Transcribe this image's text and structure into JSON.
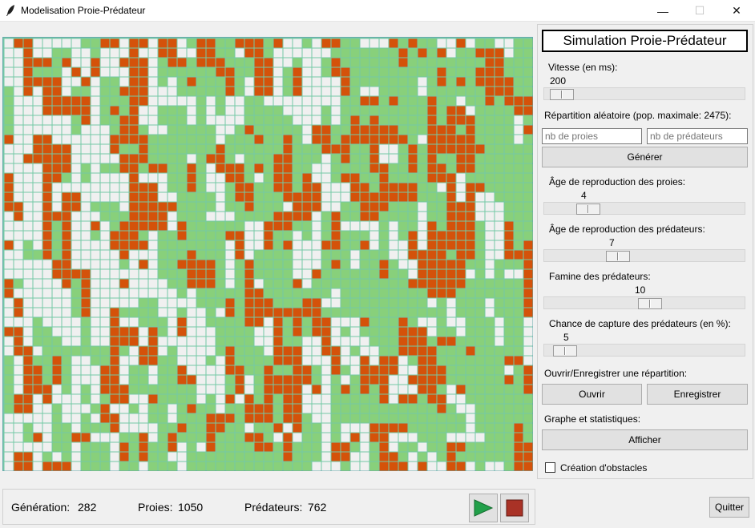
{
  "window": {
    "title": "Modelisation Proie-Prédateur",
    "minimize_glyph": "—",
    "maximize_glyph": "☐",
    "close_glyph": "✕",
    "icon": "feather-icon"
  },
  "grid": {
    "cols": 55,
    "rows": 45,
    "colors": {
      "prey": "#88d07b",
      "predator": "#d4520a",
      "empty": "#f0f0f0",
      "lines": "#74c9a6"
    }
  },
  "status": {
    "generation_label": "Génération:",
    "generation": "282",
    "prey_label": "Proies:",
    "prey": "1050",
    "predator_label": "Prédateurs:",
    "predator": "762",
    "play_icon": "play-icon",
    "stop_icon": "stop-icon",
    "play_color": "#22a04a",
    "stop_color": "#a93226"
  },
  "panel": {
    "title": "Simulation Proie-Prédateur",
    "speed": {
      "label": "Vitesse (en ms):",
      "value": "200",
      "fraction": 0.03
    },
    "random": {
      "label": "Répartition aléatoire (pop. maximale: 2475):",
      "prey_placeholder": "nb de proies",
      "predator_placeholder": "nb de prédateurs",
      "generate": "Générer"
    },
    "prey_repro": {
      "label": "Âge de reproduction des proies:",
      "value": "4",
      "fraction": 0.18
    },
    "pred_repro": {
      "label": "Âge de reproduction des prédateurs:",
      "value": "7",
      "fraction": 0.35
    },
    "famine": {
      "label": "Famine des prédateurs:",
      "value": "10",
      "fraction": 0.53
    },
    "capture": {
      "label": "Chance de capture des prédateurs (en %):",
      "value": "5",
      "fraction": 0.05
    },
    "file": {
      "label": "Ouvrir/Enregistrer une répartition:",
      "open": "Ouvrir",
      "save": "Enregistrer"
    },
    "stats": {
      "label": "Graphe et statistiques:",
      "show": "Afficher"
    },
    "obstacles": {
      "label": "Création d'obstacles",
      "checked": false
    }
  },
  "quit": "Quitter"
}
